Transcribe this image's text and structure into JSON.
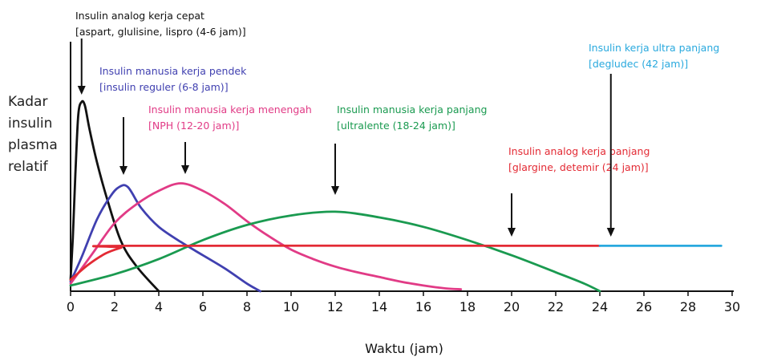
{
  "chart_data": {
    "type": "line",
    "ylabel": "Kadar insulin plasma relatif",
    "xlabel": "Waktu (jam)",
    "xlim": [
      0,
      30
    ],
    "ylim": [
      0,
      1
    ],
    "x_ticks": [
      0,
      2,
      4,
      6,
      8,
      10,
      12,
      14,
      16,
      18,
      20,
      22,
      24,
      26,
      28,
      30
    ],
    "grid": false,
    "series": [
      {
        "name": "Insulin analog kerja cepat",
        "color": "#111111",
        "points": [
          [
            0,
            0.06
          ],
          [
            0.1,
            0.28
          ],
          [
            0.22,
            0.62
          ],
          [
            0.35,
            0.93
          ],
          [
            0.5,
            1.0
          ],
          [
            0.65,
            0.98
          ],
          [
            0.85,
            0.86
          ],
          [
            1.2,
            0.68
          ],
          [
            1.7,
            0.47
          ],
          [
            2.3,
            0.26
          ],
          [
            3.0,
            0.13
          ],
          [
            4.0,
            0.0
          ]
        ]
      },
      {
        "name": "Insulin manusia kerja pendek",
        "color": "#4040b0",
        "points": [
          [
            0,
            0.05
          ],
          [
            0.5,
            0.18
          ],
          [
            1.2,
            0.38
          ],
          [
            1.8,
            0.5
          ],
          [
            2.2,
            0.55
          ],
          [
            2.6,
            0.55
          ],
          [
            3.2,
            0.44
          ],
          [
            4.0,
            0.34
          ],
          [
            5.0,
            0.26
          ],
          [
            6.0,
            0.19
          ],
          [
            7.0,
            0.12
          ],
          [
            8.0,
            0.04
          ],
          [
            8.6,
            0.0
          ]
        ]
      },
      {
        "name": "Insulin manusia kerja menengah",
        "color": "#e13b86",
        "points": [
          [
            0,
            0.04
          ],
          [
            1.0,
            0.2
          ],
          [
            2.0,
            0.36
          ],
          [
            3.0,
            0.46
          ],
          [
            4.0,
            0.53
          ],
          [
            5.0,
            0.57
          ],
          [
            6.0,
            0.53
          ],
          [
            7.0,
            0.46
          ],
          [
            8.0,
            0.37
          ],
          [
            9.0,
            0.29
          ],
          [
            10.0,
            0.22
          ],
          [
            11.0,
            0.17
          ],
          [
            12.0,
            0.13
          ],
          [
            13.0,
            0.1
          ],
          [
            14.0,
            0.075
          ],
          [
            15.0,
            0.05
          ],
          [
            16.0,
            0.03
          ],
          [
            17.0,
            0.015
          ],
          [
            17.7,
            0.01
          ]
        ]
      },
      {
        "name": "Insulin manusia kerja panjang",
        "color": "#1a9a50",
        "points": [
          [
            0,
            0.03
          ],
          [
            2.0,
            0.09
          ],
          [
            4.0,
            0.17
          ],
          [
            6.0,
            0.27
          ],
          [
            8.0,
            0.35
          ],
          [
            10.0,
            0.4
          ],
          [
            12.0,
            0.42
          ],
          [
            14.0,
            0.39
          ],
          [
            16.0,
            0.34
          ],
          [
            18.0,
            0.27
          ],
          [
            20.0,
            0.19
          ],
          [
            22.0,
            0.1
          ],
          [
            23.3,
            0.04
          ],
          [
            24.0,
            0.0
          ]
        ]
      },
      {
        "name": "Insulin analog kerja panjang",
        "color": "#e32a34",
        "points": [
          [
            0,
            0.06
          ],
          [
            0.8,
            0.14
          ],
          [
            1.6,
            0.2
          ],
          [
            2.3,
            0.23
          ],
          [
            2.7,
            0.24
          ],
          [
            24.0,
            0.24
          ]
        ]
      },
      {
        "name": "Insulin kerja ultra panjang",
        "color": "#29a9de",
        "points": [
          [
            24.0,
            0.24
          ],
          [
            26.0,
            0.24
          ],
          [
            29.5,
            0.24
          ]
        ]
      }
    ],
    "annotations": [
      {
        "line1": "Insulin analog kerja cepat",
        "line2": "[aspart, glulisine, lispro (4-6 jam)]",
        "color": "#111111",
        "arrow_x": 0.5
      },
      {
        "line1": "Insulin manusia kerja pendek",
        "line2": "[insulin reguler (6-8 jam)]",
        "color": "#4040b0",
        "arrow_x": 2.4
      },
      {
        "line1": "Insulin manusia kerja menengah",
        "line2": "[NPH (12-20 jam)]",
        "color": "#e13b86",
        "arrow_x": 5.2
      },
      {
        "line1": "Insulin manusia kerja panjang",
        "line2": "[ultralente (18-24 jam)]",
        "color": "#1a9a50",
        "arrow_x": 12.0
      },
      {
        "line1": "Insulin analog kerja panjang",
        "line2": "[glargine, detemir (24 jam)]",
        "color": "#e32a34",
        "arrow_x": 20.0
      },
      {
        "line1": "Insulin kerja ultra panjang",
        "line2": "[degludec (42 jam)]",
        "color": "#29a9de",
        "arrow_x": 24.5
      }
    ]
  }
}
